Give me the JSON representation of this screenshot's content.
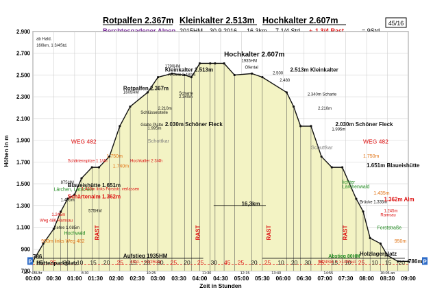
{
  "header": {
    "title_parts": [
      "Rotpalfen 2.367m",
      "Kleinkalter 2.513m",
      "Hochkalter 2.607m"
    ],
    "region": "Berchtesgadener Alpen",
    "year": "2015HM",
    "date": "30.9.2016",
    "distance": "16,3km",
    "time_walk": "7 1/4 Std.",
    "time_plus": "+",
    "time_rest": "1 3/4 Rast",
    "time_total": "= 9Std.",
    "page_badge": "45/16"
  },
  "chart_data": {
    "type": "area",
    "xlabel": "Zeit in Stunden",
    "ylabel": "Höhen in m",
    "xlim": [
      0,
      540
    ],
    "ylim": [
      700,
      2900
    ],
    "x_ticks": [
      "00:00",
      "00:30",
      "01:00",
      "01:30",
      "02:00",
      "02:30",
      "03:00",
      "03:30",
      "04:00",
      "04:30",
      "05:00",
      "05:30",
      "06:00",
      "06:30",
      "07:00",
      "07:30",
      "08:00",
      "08:30",
      "09:00"
    ],
    "y_ticks": [
      "700",
      "900",
      "1.100",
      "1.300",
      "1.500",
      "1.700",
      "1.900",
      "2.100",
      "2.300",
      "2.500",
      "2.700",
      "2.900"
    ],
    "x": [
      0,
      15,
      30,
      40,
      50,
      60,
      70,
      85,
      95,
      110,
      125,
      140,
      165,
      180,
      200,
      218,
      228,
      240,
      255,
      262,
      275,
      290,
      315,
      330,
      365,
      375,
      385,
      400,
      415,
      430,
      445,
      465,
      475,
      485,
      500,
      510,
      525,
      540
    ],
    "elevation": [
      786,
      950,
      1085,
      1243,
      1362,
      1400,
      1550,
      1651,
      1651,
      1750,
      2030,
      2210,
      2340,
      2480,
      2513,
      2500,
      2480,
      2607,
      2607,
      2607,
      2607,
      2500,
      2513,
      2480,
      2340,
      2210,
      2030,
      2030,
      1750,
      1651,
      1651,
      1362,
      1245,
      1000,
      950,
      840,
      786,
      786
    ],
    "segment_minutes": [
      "15",
      "25",
      "30",
      "10",
      "15",
      "20",
      "25",
      "15",
      "20",
      "30",
      "25",
      "20",
      "25",
      "30",
      "45",
      "25",
      "20",
      "25",
      "10",
      "20",
      "30",
      "25",
      "15",
      "10",
      "25",
      "10",
      "15",
      "20"
    ],
    "rest_labels": [
      {
        "x": 95,
        "label": "RAST"
      },
      {
        "x": 240,
        "label": "RAST"
      },
      {
        "x": 342,
        "label": "RAST"
      },
      {
        "x": 452,
        "label": "RAST"
      }
    ],
    "intermediate_times": [
      {
        "x": 0,
        "label": "ab 7:05Uhr"
      },
      {
        "x": 75,
        "label": "8:30"
      },
      {
        "x": 170,
        "label": "10:25"
      },
      {
        "x": 250,
        "label": "11:30"
      },
      {
        "x": 305,
        "label": "12:15"
      },
      {
        "x": 350,
        "label": "13:40"
      },
      {
        "x": 425,
        "label": "14:55"
      },
      {
        "x": 510,
        "label": "16:05 an"
      }
    ],
    "annotations": [
      {
        "x": 5,
        "y": 2820,
        "text": "ab Hald."
      },
      {
        "x": 5,
        "y": 2760,
        "text": "160km, 1 3/4Std."
      },
      {
        "x": 0,
        "y": 815,
        "text": "786"
      },
      {
        "x": 540,
        "y": 770,
        "text": "786m"
      },
      {
        "x": 5,
        "y": 755,
        "text": "Hüttenparkplatz"
      },
      {
        "x": 470,
        "y": 840,
        "text": "Holzlagerplatz"
      },
      {
        "x": 12,
        "y": 960,
        "text": "950m links Weg 482"
      },
      {
        "x": 10,
        "y": 1150,
        "text": "Weg 486 Ramsau"
      },
      {
        "x": 30,
        "y": 1085,
        "text": "Kehre 1.085m"
      },
      {
        "x": 27,
        "y": 1205,
        "text": "1.245m"
      },
      {
        "x": 40,
        "y": 1340,
        "text": "1.405m"
      },
      {
        "x": 50,
        "y": 1365,
        "text": "Schärtenalm 1.362m"
      },
      {
        "x": 80,
        "y": 1240,
        "text": "575HM"
      },
      {
        "x": 30,
        "y": 1435,
        "text": "Lärchen, Latschen"
      },
      {
        "x": 50,
        "y": 1470,
        "text": "Blaueishütte 1.651m"
      },
      {
        "x": 40,
        "y": 1500,
        "text": "875HM"
      },
      {
        "x": 50,
        "y": 1700,
        "text": "Schärtenspitze 1 1/4h"
      },
      {
        "x": 106,
        "y": 1740,
        "text": "1.750m"
      },
      {
        "x": 115,
        "y": 1650,
        "text": "1.740m"
      },
      {
        "x": 140,
        "y": 1700,
        "text": "Hochkalter 2 3/4h"
      },
      {
        "x": 55,
        "y": 1870,
        "text": "WEG 482"
      },
      {
        "x": 165,
        "y": 1880,
        "text": "Schottkar"
      },
      {
        "x": 155,
        "y": 2030,
        "text": "Glatte Platte"
      },
      {
        "x": 165,
        "y": 2000,
        "text": "1.995m"
      },
      {
        "x": 190,
        "y": 2030,
        "text": "2.030m Schöner Fleck"
      },
      {
        "x": 155,
        "y": 2145,
        "text": "Schlüsselstelle"
      },
      {
        "x": 180,
        "y": 2180,
        "text": "2.210m"
      },
      {
        "x": 210,
        "y": 2290,
        "text": "2.340m"
      },
      {
        "x": 210,
        "y": 2320,
        "text": "Scharte"
      },
      {
        "x": 130,
        "y": 2360,
        "text": "Rotpalfen 2.367m"
      },
      {
        "x": 130,
        "y": 2330,
        "text": "1605HM"
      },
      {
        "x": 190,
        "y": 2530,
        "text": "Kleinkalter 2.513m"
      },
      {
        "x": 190,
        "y": 2570,
        "text": "1790HM"
      },
      {
        "x": 195,
        "y": 2490,
        "text": "N-Grat 2.480m"
      },
      {
        "x": 275,
        "y": 2670,
        "text": "Hochkalter 2.607m"
      },
      {
        "x": 300,
        "y": 2620,
        "text": "1935HM"
      },
      {
        "x": 305,
        "y": 2560,
        "text": "Ofental"
      },
      {
        "x": 345,
        "y": 2505,
        "text": "2.500"
      },
      {
        "x": 355,
        "y": 2440,
        "text": "2.480"
      },
      {
        "x": 370,
        "y": 2530,
        "text": "2.513m Kleinkalter"
      },
      {
        "x": 395,
        "y": 2310,
        "text": "2.340m Scharte"
      },
      {
        "x": 410,
        "y": 2180,
        "text": "2.210m"
      },
      {
        "x": 435,
        "y": 2030,
        "text": "2.030m Schöner Fleck"
      },
      {
        "x": 430,
        "y": 1990,
        "text": "1.995m"
      },
      {
        "x": 400,
        "y": 1820,
        "text": "Schuttkar"
      },
      {
        "x": 475,
        "y": 1870,
        "text": "WEG 482"
      },
      {
        "x": 475,
        "y": 1740,
        "text": "1.750m"
      },
      {
        "x": 480,
        "y": 1651,
        "text": "1.651m Blaueishütte"
      },
      {
        "x": 445,
        "y": 1500,
        "text": "lichter"
      },
      {
        "x": 445,
        "y": 1460,
        "text": "Lärchenwald"
      },
      {
        "x": 490,
        "y": 1400,
        "text": "1.435m"
      },
      {
        "x": 470,
        "y": 1320,
        "text": "Brücke 1.335m"
      },
      {
        "x": 505,
        "y": 1340,
        "text": "1.362m Alm"
      },
      {
        "x": 505,
        "y": 1240,
        "text": "1.245m"
      },
      {
        "x": 500,
        "y": 1200,
        "text": "Ramsau"
      },
      {
        "x": 495,
        "y": 1080,
        "text": "Forststraße"
      },
      {
        "x": 520,
        "y": 960,
        "text": "950m"
      },
      {
        "x": 45,
        "y": 1030,
        "text": "Hochwald"
      },
      {
        "x": 70,
        "y": 1440,
        "text": "1.433m links Forststr. verlassen"
      },
      {
        "x": 130,
        "y": 820,
        "text": "Aufstieg 1935HM"
      },
      {
        "x": 140,
        "y": 770,
        "text": "4Std. + <1/2Rast"
      },
      {
        "x": 425,
        "y": 820,
        "text": "Abstieg 80HM"
      },
      {
        "x": 410,
        "y": 770,
        "text": "3/1/4Std. + >1/2Rast"
      },
      {
        "x": 300,
        "y": 1300,
        "text": "16,3km"
      }
    ],
    "colors": {
      "fill": "#f3f3c4",
      "line": "#111111",
      "red": "#dd1111",
      "green": "#1e8a1e",
      "purple": "#7b2f9a",
      "orange": "#e07010",
      "blue": "#2e6cc8"
    }
  }
}
